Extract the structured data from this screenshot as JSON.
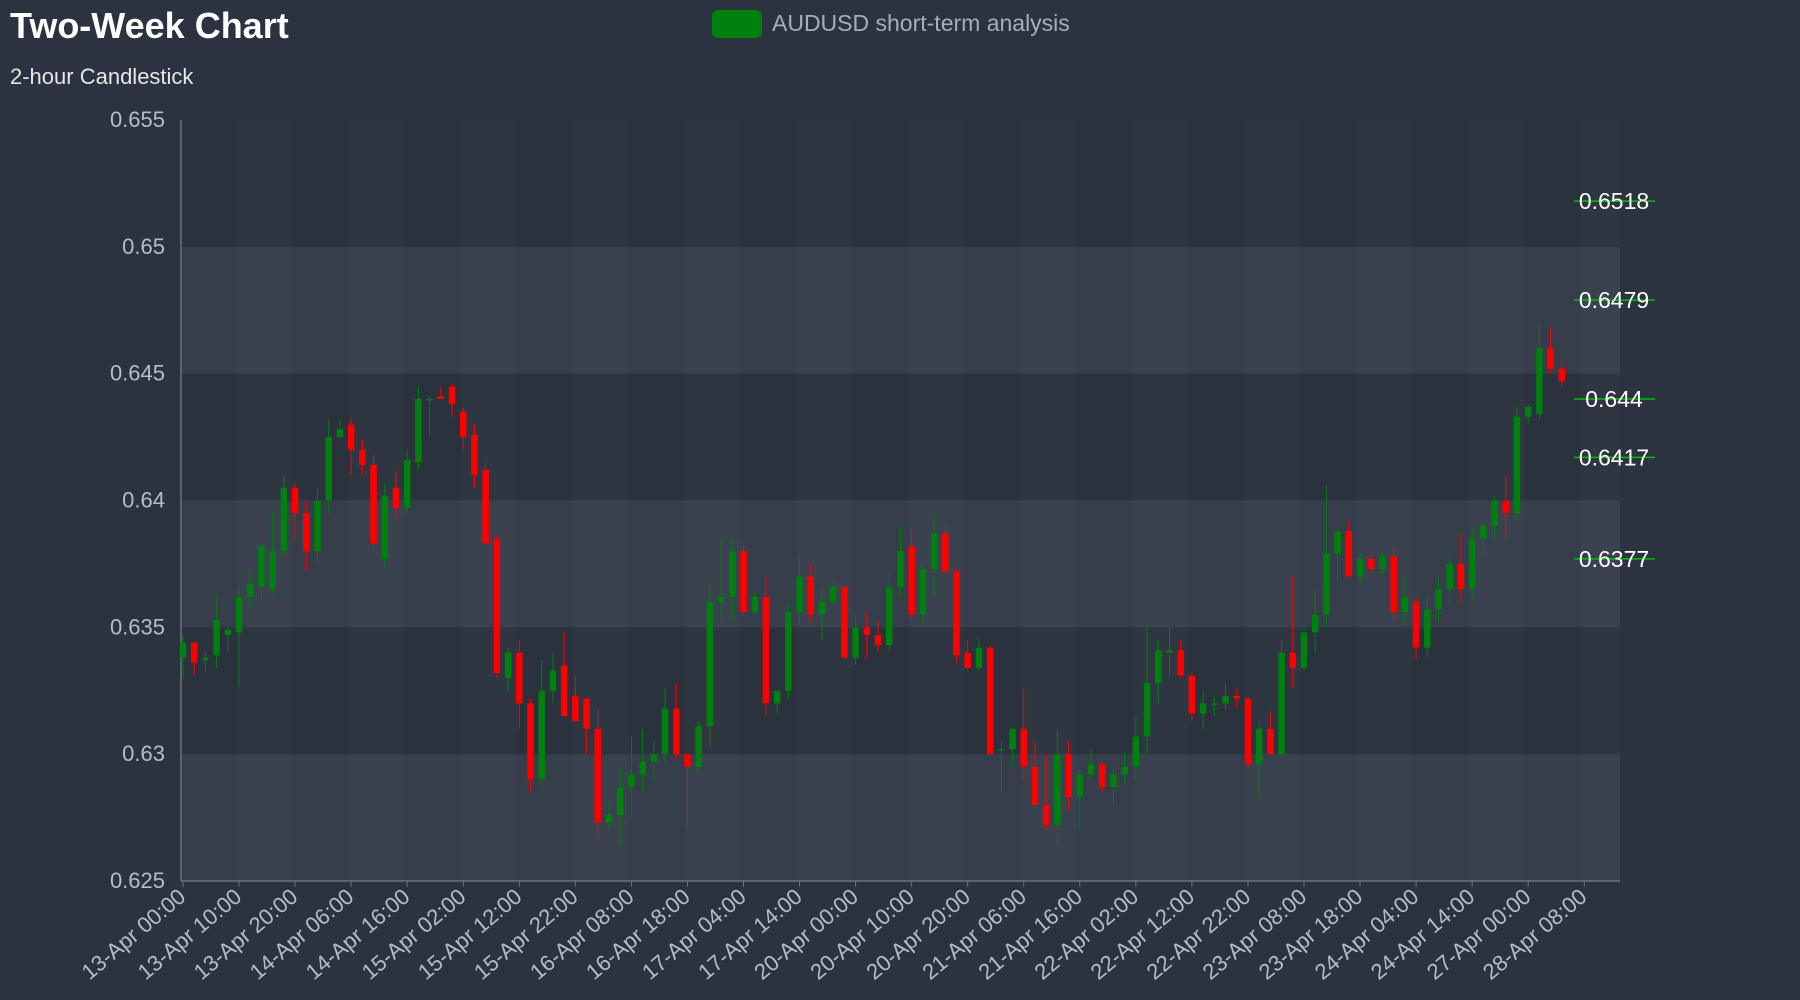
{
  "header": {
    "title": "Two-Week Chart",
    "subtitle": "2-hour Candlestick"
  },
  "legend": {
    "label": "AUDUSD short-term analysis",
    "color": "#00800f"
  },
  "colors": {
    "background": "#2b3340",
    "up": "#00800f",
    "down": "#ff0000",
    "band_light": "#3a414c",
    "band_dark": "#2f3641",
    "axis": "#6c727c",
    "level_line": "#00c000"
  },
  "chart_data": {
    "type": "candlestick",
    "title": "Two-Week Chart",
    "subtitle": "2-hour Candlestick",
    "ylim": [
      0.625,
      0.655
    ],
    "yticks": [
      0.625,
      0.63,
      0.635,
      0.64,
      0.645,
      0.65,
      0.655
    ],
    "ytick_labels": [
      "0.625",
      "0.63",
      "0.635",
      "0.64",
      "0.645",
      "0.65",
      "0.655"
    ],
    "x_tick_labels": [
      "13-Apr 00:00",
      "13-Apr 10:00",
      "13-Apr 20:00",
      "14-Apr 06:00",
      "14-Apr 16:00",
      "15-Apr 02:00",
      "15-Apr 12:00",
      "15-Apr 22:00",
      "16-Apr 08:00",
      "16-Apr 18:00",
      "17-Apr 04:00",
      "17-Apr 14:00",
      "20-Apr 00:00",
      "20-Apr 10:00",
      "20-Apr 20:00",
      "21-Apr 06:00",
      "21-Apr 16:00",
      "22-Apr 02:00",
      "22-Apr 12:00",
      "22-Apr 22:00",
      "23-Apr 08:00",
      "23-Apr 18:00",
      "24-Apr 04:00",
      "24-Apr 14:00",
      "27-Apr 00:00",
      "28-Apr 08:00"
    ],
    "candle_interval": "2h",
    "levels": [
      {
        "value": 0.6518,
        "label": "0.6518"
      },
      {
        "value": 0.6479,
        "label": "0.6479"
      },
      {
        "value": 0.644,
        "label": "0.644"
      },
      {
        "value": 0.6417,
        "label": "0.6417"
      },
      {
        "value": 0.6377,
        "label": "0.6377"
      }
    ],
    "series": [
      {
        "name": "AUDUSD short-term analysis",
        "candles": [
          [
            0.6338,
            0.6347,
            0.633,
            0.6344
          ],
          [
            0.6344,
            0.6344,
            0.6331,
            0.6336
          ],
          [
            0.6337,
            0.6341,
            0.6333,
            0.6338
          ],
          [
            0.6339,
            0.6363,
            0.6334,
            0.6353
          ],
          [
            0.6347,
            0.635,
            0.634,
            0.6349
          ],
          [
            0.6348,
            0.6366,
            0.6327,
            0.6362
          ],
          [
            0.6362,
            0.6372,
            0.6357,
            0.6367
          ],
          [
            0.6366,
            0.6383,
            0.636,
            0.6382
          ],
          [
            0.6365,
            0.6395,
            0.6363,
            0.638
          ],
          [
            0.638,
            0.641,
            0.6378,
            0.6405
          ],
          [
            0.6405,
            0.6407,
            0.6385,
            0.6395
          ],
          [
            0.6395,
            0.64,
            0.6372,
            0.638
          ],
          [
            0.638,
            0.6405,
            0.6375,
            0.64
          ],
          [
            0.64,
            0.6432,
            0.6395,
            0.6425
          ],
          [
            0.6425,
            0.6432,
            0.6425,
            0.6428
          ],
          [
            0.643,
            0.6433,
            0.641,
            0.642
          ],
          [
            0.642,
            0.6424,
            0.641,
            0.6414
          ],
          [
            0.6414,
            0.6418,
            0.638,
            0.6383
          ],
          [
            0.6377,
            0.6407,
            0.6373,
            0.6402
          ],
          [
            0.6405,
            0.6412,
            0.6393,
            0.6397
          ],
          [
            0.6397,
            0.642,
            0.6395,
            0.6416
          ],
          [
            0.6415,
            0.6445,
            0.6412,
            0.644
          ],
          [
            0.644,
            0.6441,
            0.6425,
            0.644
          ],
          [
            0.6441,
            0.6445,
            0.644,
            0.644
          ],
          [
            0.6445,
            0.6446,
            0.6433,
            0.6438
          ],
          [
            0.6435,
            0.6437,
            0.642,
            0.6425
          ],
          [
            0.6426,
            0.643,
            0.6405,
            0.641
          ],
          [
            0.6412,
            0.6415,
            0.6385,
            0.6383
          ],
          [
            0.6385,
            0.6386,
            0.633,
            0.6332
          ],
          [
            0.633,
            0.6342,
            0.6325,
            0.634
          ],
          [
            0.634,
            0.6345,
            0.631,
            0.632
          ],
          [
            0.632,
            0.6322,
            0.6285,
            0.629
          ],
          [
            0.629,
            0.6337,
            0.6287,
            0.6325
          ],
          [
            0.6325,
            0.634,
            0.632,
            0.6333
          ],
          [
            0.6335,
            0.6348,
            0.6315,
            0.6315
          ],
          [
            0.6323,
            0.6331,
            0.6313,
            0.6313
          ],
          [
            0.6322,
            0.6322,
            0.63,
            0.631
          ],
          [
            0.631,
            0.6318,
            0.6268,
            0.6273
          ],
          [
            0.6273,
            0.628,
            0.627,
            0.6276
          ],
          [
            0.6276,
            0.6295,
            0.6264,
            0.6287
          ],
          [
            0.6287,
            0.6307,
            0.6275,
            0.6292
          ],
          [
            0.6292,
            0.631,
            0.6285,
            0.6297
          ],
          [
            0.6297,
            0.6305,
            0.6289,
            0.63
          ],
          [
            0.63,
            0.6326,
            0.6296,
            0.6318
          ],
          [
            0.6318,
            0.6328,
            0.6298,
            0.63
          ],
          [
            0.63,
            0.63,
            0.6271,
            0.6295
          ],
          [
            0.6295,
            0.6313,
            0.6293,
            0.6311
          ],
          [
            0.6311,
            0.6367,
            0.6303,
            0.636
          ],
          [
            0.636,
            0.6385,
            0.6353,
            0.6362
          ],
          [
            0.6362,
            0.6385,
            0.6353,
            0.638
          ],
          [
            0.638,
            0.6384,
            0.6355,
            0.6356
          ],
          [
            0.6356,
            0.6364,
            0.6355,
            0.6362
          ],
          [
            0.6362,
            0.637,
            0.6315,
            0.632
          ],
          [
            0.632,
            0.6325,
            0.6316,
            0.6325
          ],
          [
            0.6325,
            0.6359,
            0.6322,
            0.6356
          ],
          [
            0.6356,
            0.6378,
            0.6351,
            0.637
          ],
          [
            0.637,
            0.6375,
            0.6352,
            0.6355
          ],
          [
            0.6355,
            0.6365,
            0.6345,
            0.636
          ],
          [
            0.636,
            0.6368,
            0.6359,
            0.6366
          ],
          [
            0.6366,
            0.6366,
            0.6338,
            0.6338
          ],
          [
            0.6338,
            0.6355,
            0.6335,
            0.635
          ],
          [
            0.635,
            0.6356,
            0.6338,
            0.6347
          ],
          [
            0.6347,
            0.6353,
            0.634,
            0.6343
          ],
          [
            0.6343,
            0.6372,
            0.634,
            0.6366
          ],
          [
            0.6366,
            0.639,
            0.6362,
            0.638
          ],
          [
            0.6382,
            0.6389,
            0.6353,
            0.6355
          ],
          [
            0.6355,
            0.6375,
            0.6351,
            0.6373
          ],
          [
            0.6373,
            0.6395,
            0.6362,
            0.6387
          ],
          [
            0.6387,
            0.639,
            0.6372,
            0.6372
          ],
          [
            0.6372,
            0.6373,
            0.6336,
            0.6339
          ],
          [
            0.634,
            0.6345,
            0.6333,
            0.6334
          ],
          [
            0.6334,
            0.6346,
            0.6333,
            0.6342
          ],
          [
            0.6342,
            0.6343,
            0.63,
            0.63
          ],
          [
            0.6302,
            0.6305,
            0.6285,
            0.6302
          ],
          [
            0.6302,
            0.631,
            0.6295,
            0.631
          ],
          [
            0.631,
            0.6326,
            0.629,
            0.6295
          ],
          [
            0.6295,
            0.6305,
            0.6282,
            0.628
          ],
          [
            0.628,
            0.63,
            0.627,
            0.6272
          ],
          [
            0.6272,
            0.631,
            0.6265,
            0.63
          ],
          [
            0.63,
            0.6305,
            0.6278,
            0.6283
          ],
          [
            0.6283,
            0.6295,
            0.627,
            0.6292
          ],
          [
            0.6292,
            0.6302,
            0.629,
            0.6296
          ],
          [
            0.6296,
            0.6297,
            0.6285,
            0.6287
          ],
          [
            0.6287,
            0.6295,
            0.628,
            0.6292
          ],
          [
            0.6292,
            0.6301,
            0.6288,
            0.6295
          ],
          [
            0.6295,
            0.6315,
            0.629,
            0.6307
          ],
          [
            0.6307,
            0.6351,
            0.63,
            0.6328
          ],
          [
            0.6328,
            0.6345,
            0.632,
            0.6341
          ],
          [
            0.634,
            0.635,
            0.633,
            0.6341
          ],
          [
            0.6341,
            0.6345,
            0.633,
            0.6331
          ],
          [
            0.6331,
            0.6332,
            0.6313,
            0.6316
          ],
          [
            0.6316,
            0.6325,
            0.631,
            0.632
          ],
          [
            0.632,
            0.6323,
            0.6315,
            0.632
          ],
          [
            0.632,
            0.6328,
            0.6317,
            0.6323
          ],
          [
            0.6323,
            0.6326,
            0.6318,
            0.6322
          ],
          [
            0.6322,
            0.6322,
            0.6294,
            0.6296
          ],
          [
            0.6296,
            0.6313,
            0.6282,
            0.631
          ],
          [
            0.631,
            0.6317,
            0.63,
            0.63
          ],
          [
            0.63,
            0.6345,
            0.6299,
            0.634
          ],
          [
            0.634,
            0.637,
            0.6326,
            0.6334
          ],
          [
            0.6334,
            0.635,
            0.6333,
            0.6348
          ],
          [
            0.6348,
            0.6365,
            0.634,
            0.6355
          ],
          [
            0.6355,
            0.6406,
            0.635,
            0.6379
          ],
          [
            0.6379,
            0.6387,
            0.6368,
            0.6388
          ],
          [
            0.6388,
            0.6392,
            0.637,
            0.637
          ],
          [
            0.637,
            0.638,
            0.6367,
            0.6377
          ],
          [
            0.6377,
            0.638,
            0.6371,
            0.6373
          ],
          [
            0.6373,
            0.638,
            0.637,
            0.6378
          ],
          [
            0.6378,
            0.6381,
            0.6352,
            0.6356
          ],
          [
            0.6356,
            0.637,
            0.635,
            0.6362
          ],
          [
            0.636,
            0.6362,
            0.6337,
            0.6342
          ],
          [
            0.6342,
            0.6363,
            0.6338,
            0.6357
          ],
          [
            0.6357,
            0.637,
            0.6352,
            0.6365
          ],
          [
            0.6365,
            0.638,
            0.636,
            0.6375
          ],
          [
            0.6375,
            0.6387,
            0.636,
            0.6365
          ],
          [
            0.6365,
            0.639,
            0.636,
            0.6385
          ],
          [
            0.6385,
            0.6392,
            0.6378,
            0.639
          ],
          [
            0.639,
            0.6402,
            0.6385,
            0.64
          ],
          [
            0.64,
            0.641,
            0.6385,
            0.6395
          ],
          [
            0.6395,
            0.6437,
            0.6392,
            0.6433
          ],
          [
            0.6433,
            0.6438,
            0.643,
            0.6437
          ],
          [
            0.6434,
            0.647,
            0.6432,
            0.646
          ],
          [
            0.646,
            0.6468,
            0.645,
            0.6452
          ],
          [
            0.6452,
            0.6455,
            0.6445,
            0.6447
          ]
        ]
      }
    ]
  }
}
